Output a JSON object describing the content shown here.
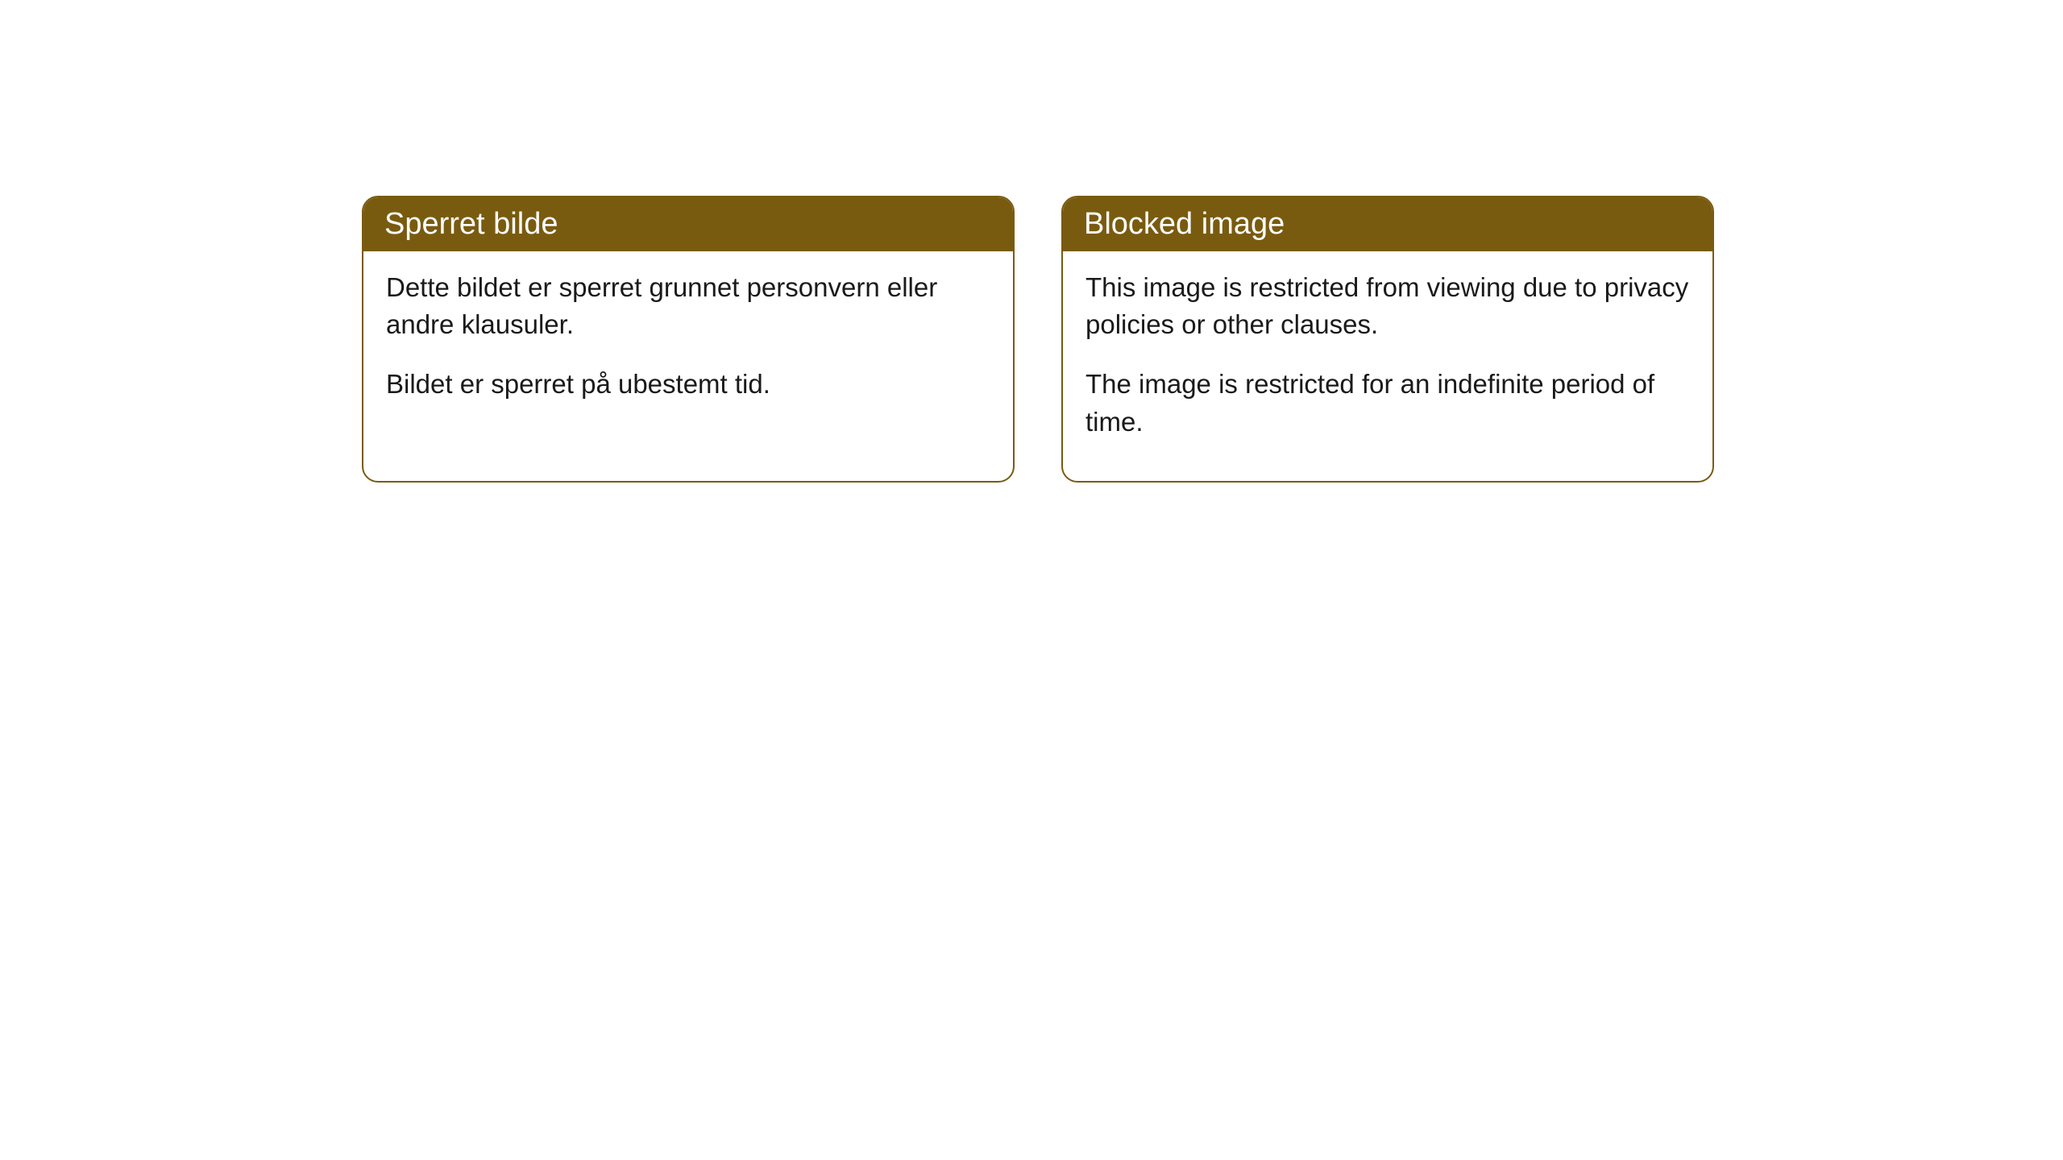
{
  "cards": [
    {
      "title": "Sperret bilde",
      "paragraph1": "Dette bildet er sperret grunnet personvern eller andre klausuler.",
      "paragraph2": "Bildet er sperret på ubestemt tid."
    },
    {
      "title": "Blocked image",
      "paragraph1": "This image is restricted from viewing due to privacy policies or other clauses.",
      "paragraph2": "The image is restricted for an indefinite period of time."
    }
  ],
  "styles": {
    "header_bg_color": "#795b10",
    "header_text_color": "#ffffff",
    "border_color": "#795b10",
    "body_bg_color": "#ffffff",
    "body_text_color": "#1a1a1a",
    "border_radius": 20,
    "header_fontsize": 38,
    "body_fontsize": 33
  }
}
